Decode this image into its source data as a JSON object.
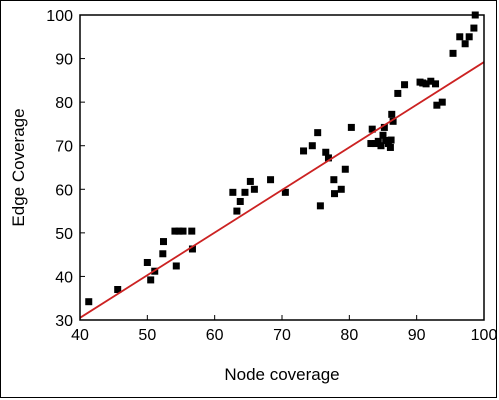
{
  "chart_data": {
    "type": "scatter",
    "xlabel": "Node coverage",
    "ylabel": "Edge Coverage",
    "xlim": [
      40,
      100
    ],
    "ylim": [
      30,
      100
    ],
    "xticks": [
      "40",
      "50",
      "60",
      "70",
      "80",
      "90",
      "100"
    ],
    "yticks": [
      "30",
      "40",
      "50",
      "60",
      "70",
      "80",
      "90",
      "100"
    ],
    "grid": false,
    "legend": "none",
    "point_color": "#000000",
    "trend_color": "#cc2222",
    "trendline": {
      "x": [
        40,
        100
      ],
      "y": [
        30.5,
        89.2
      ]
    },
    "points": [
      {
        "x": 41.3,
        "y": 34.2
      },
      {
        "x": 45.6,
        "y": 37.0
      },
      {
        "x": 50.0,
        "y": 43.2
      },
      {
        "x": 50.5,
        "y": 39.2
      },
      {
        "x": 51.1,
        "y": 41.2
      },
      {
        "x": 52.3,
        "y": 45.2
      },
      {
        "x": 52.4,
        "y": 48.0
      },
      {
        "x": 54.1,
        "y": 50.4
      },
      {
        "x": 54.3,
        "y": 42.4
      },
      {
        "x": 54.7,
        "y": 50.4
      },
      {
        "x": 55.3,
        "y": 50.4
      },
      {
        "x": 56.6,
        "y": 50.4
      },
      {
        "x": 56.7,
        "y": 46.3
      },
      {
        "x": 62.7,
        "y": 59.3
      },
      {
        "x": 63.3,
        "y": 55.0
      },
      {
        "x": 63.8,
        "y": 57.2
      },
      {
        "x": 64.5,
        "y": 59.3
      },
      {
        "x": 65.3,
        "y": 61.8
      },
      {
        "x": 65.9,
        "y": 60.0
      },
      {
        "x": 68.3,
        "y": 62.2
      },
      {
        "x": 70.5,
        "y": 59.3
      },
      {
        "x": 73.2,
        "y": 68.8
      },
      {
        "x": 74.5,
        "y": 70.0
      },
      {
        "x": 75.3,
        "y": 73.0
      },
      {
        "x": 75.7,
        "y": 56.2
      },
      {
        "x": 76.5,
        "y": 68.5
      },
      {
        "x": 76.9,
        "y": 67.2
      },
      {
        "x": 77.7,
        "y": 62.2
      },
      {
        "x": 77.8,
        "y": 59.0
      },
      {
        "x": 78.8,
        "y": 60.0
      },
      {
        "x": 79.4,
        "y": 64.6
      },
      {
        "x": 80.3,
        "y": 74.2
      },
      {
        "x": 83.2,
        "y": 70.5
      },
      {
        "x": 83.4,
        "y": 73.8
      },
      {
        "x": 83.9,
        "y": 70.5
      },
      {
        "x": 84.3,
        "y": 71.0
      },
      {
        "x": 84.7,
        "y": 70.0
      },
      {
        "x": 85.0,
        "y": 72.4
      },
      {
        "x": 85.2,
        "y": 74.2
      },
      {
        "x": 85.4,
        "y": 71.2
      },
      {
        "x": 85.8,
        "y": 70.5
      },
      {
        "x": 86.1,
        "y": 69.6
      },
      {
        "x": 86.2,
        "y": 71.3
      },
      {
        "x": 86.3,
        "y": 77.2
      },
      {
        "x": 86.5,
        "y": 75.6
      },
      {
        "x": 87.2,
        "y": 82.0
      },
      {
        "x": 88.2,
        "y": 84.0
      },
      {
        "x": 90.5,
        "y": 84.6
      },
      {
        "x": 90.9,
        "y": 84.4
      },
      {
        "x": 91.4,
        "y": 84.2
      },
      {
        "x": 92.1,
        "y": 84.8
      },
      {
        "x": 92.8,
        "y": 84.2
      },
      {
        "x": 93.0,
        "y": 79.3
      },
      {
        "x": 93.8,
        "y": 80.0
      },
      {
        "x": 95.4,
        "y": 91.2
      },
      {
        "x": 96.4,
        "y": 95.0
      },
      {
        "x": 97.2,
        "y": 93.4
      },
      {
        "x": 97.8,
        "y": 95.0
      },
      {
        "x": 98.5,
        "y": 97.0
      },
      {
        "x": 98.7,
        "y": 100.0
      }
    ]
  }
}
